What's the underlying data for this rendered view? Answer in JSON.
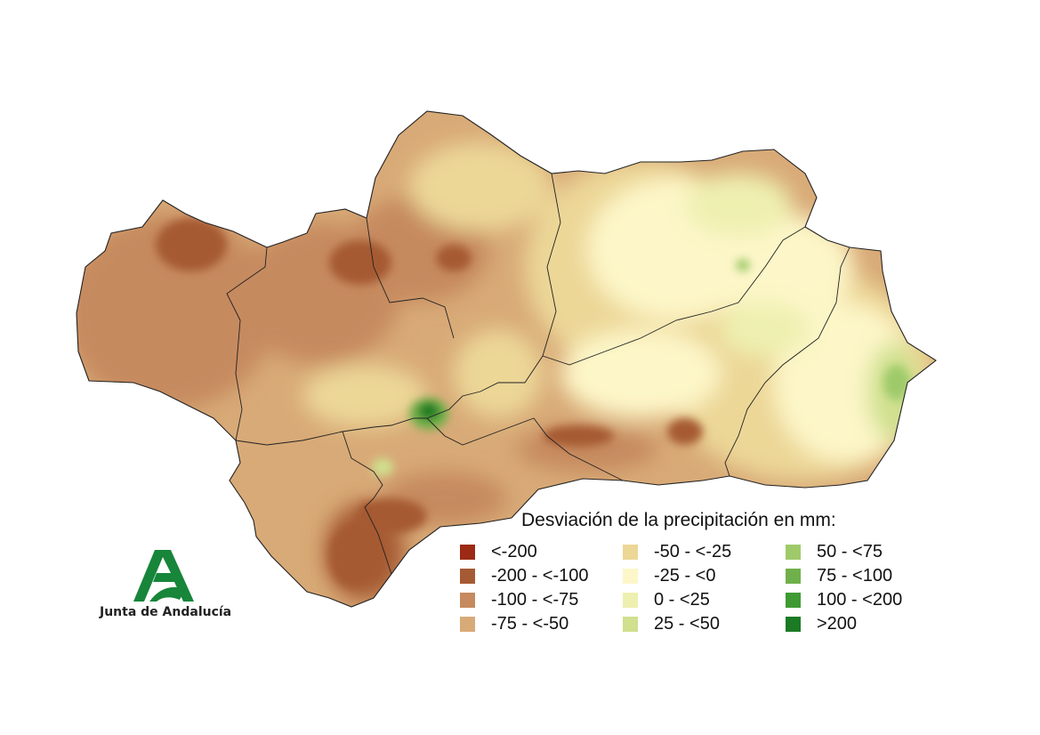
{
  "legend": {
    "title": "Desviación de la precipitación en mm:",
    "items": [
      {
        "label": "<-200",
        "color": "#9c2a14"
      },
      {
        "label": "-200 - <-100",
        "color": "#a65a33"
      },
      {
        "label": "-100 - <-75",
        "color": "#c68a5e"
      },
      {
        "label": "-75 - <-50",
        "color": "#d8aa77"
      },
      {
        "label": "-50 - <-25",
        "color": "#ecd797"
      },
      {
        "label": "-25 - <0",
        "color": "#fdf6c8"
      },
      {
        "label": "0 - <25",
        "color": "#eef0b0"
      },
      {
        "label": "25 - <50",
        "color": "#cfe08e"
      },
      {
        "label": "50 - <75",
        "color": "#9fca6a"
      },
      {
        "label": "75 - <100",
        "color": "#6fb04a"
      },
      {
        "label": "100 - <200",
        "color": "#3f9a34"
      },
      {
        "label": ">200",
        "color": "#1b7a24"
      }
    ]
  },
  "logo": {
    "text": "Junta de Andalucía",
    "color": "#17853a"
  }
}
